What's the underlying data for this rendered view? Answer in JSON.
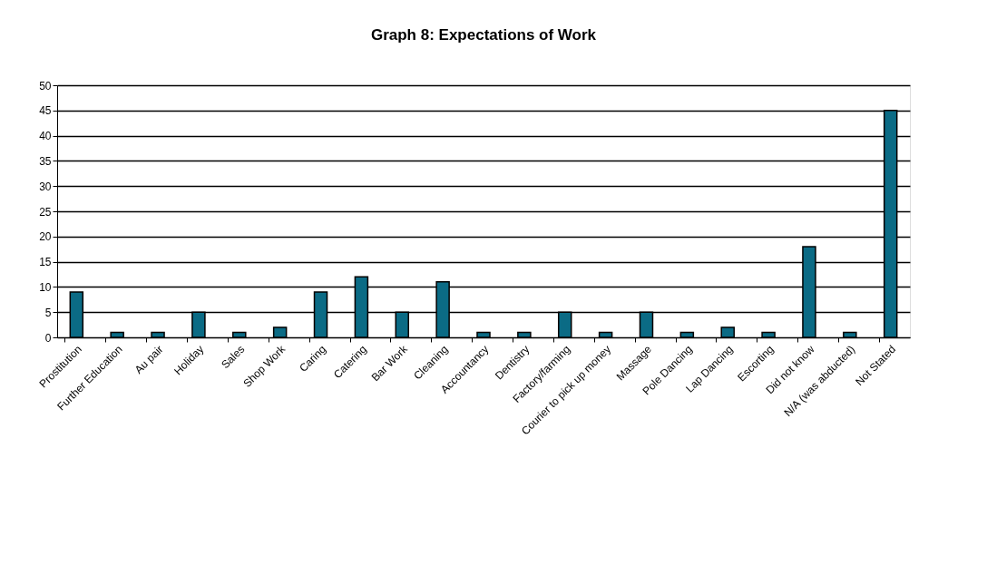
{
  "chart_data": {
    "type": "bar",
    "title": "Graph 8: Expectations of Work",
    "categories": [
      "Prostitution",
      "Further Education",
      "Au pair",
      "Holiday",
      "Sales",
      "Shop Work",
      "Caring",
      "Catering",
      "Bar Work",
      "Cleaning",
      "Accountancy",
      "Dentistry",
      "Factory/farming",
      "Courier to pick up money",
      "Massage",
      "Pole Dancing",
      "Lap Dancing",
      "Escorting",
      "Did not know",
      "N/A (was abducted)",
      "Not Stated"
    ],
    "values": [
      9,
      1,
      1,
      5,
      1,
      2,
      9,
      12,
      5,
      11,
      1,
      1,
      5,
      1,
      5,
      1,
      2,
      1,
      18,
      1,
      45
    ],
    "color": "#0b6b85",
    "ylim": [
      0,
      50
    ],
    "yticks": [
      0,
      5,
      10,
      15,
      20,
      25,
      30,
      35,
      40,
      45,
      50
    ],
    "grid": "y"
  }
}
